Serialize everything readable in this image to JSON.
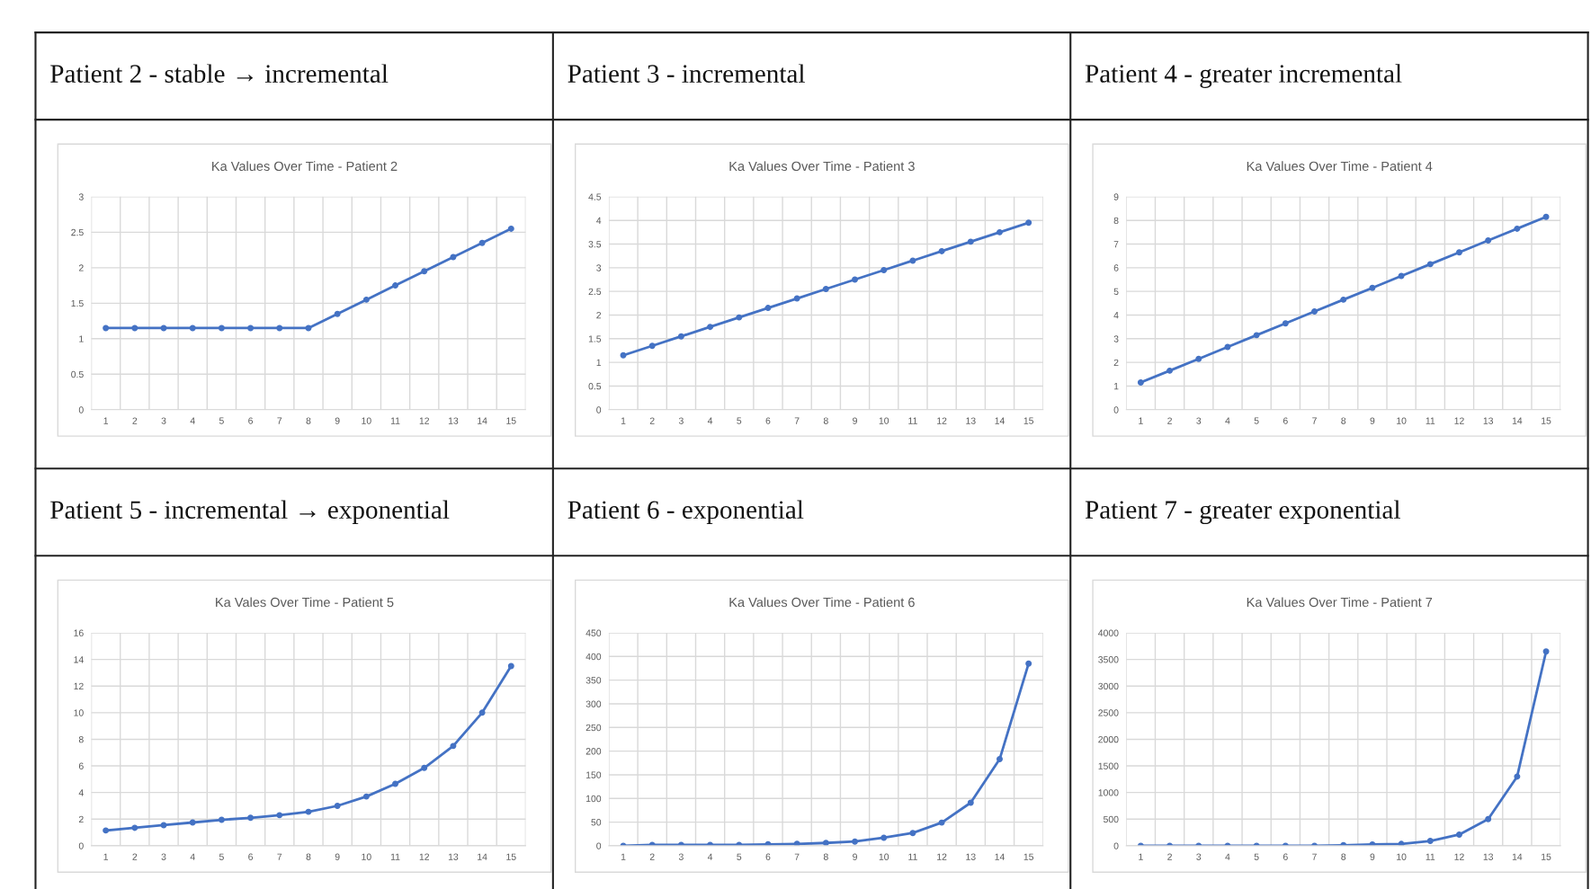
{
  "chart_data": [
    {
      "type": "line",
      "subtitle": "Patient 2 - stable → incremental",
      "title": "Ka Values Over Time - Patient 2",
      "categories": [
        "1",
        "2",
        "3",
        "4",
        "5",
        "6",
        "7",
        "8",
        "9",
        "10",
        "11",
        "12",
        "13",
        "14",
        "15"
      ],
      "ylim": [
        0,
        3
      ],
      "yticks": [
        0,
        0.5,
        1,
        1.5,
        2,
        2.5,
        3
      ],
      "grid": true,
      "marker": "circle",
      "line_style": "solid",
      "series": [
        {
          "color": "#4472c4",
          "values": [
            1.15,
            1.15,
            1.15,
            1.15,
            1.15,
            1.15,
            1.15,
            1.15,
            1.35,
            1.55,
            1.75,
            1.95,
            2.15,
            2.35,
            2.55
          ]
        }
      ]
    },
    {
      "type": "line",
      "subtitle": "Patient 3 - incremental",
      "title": "Ka Values Over Time - Patient 3",
      "categories": [
        "1",
        "2",
        "3",
        "4",
        "5",
        "6",
        "7",
        "8",
        "9",
        "10",
        "11",
        "12",
        "13",
        "14",
        "15"
      ],
      "ylim": [
        0,
        4.5
      ],
      "yticks": [
        0,
        0.5,
        1,
        1.5,
        2,
        2.5,
        3,
        3.5,
        4,
        4.5
      ],
      "grid": true,
      "marker": "circle",
      "line_style": "solid",
      "series": [
        {
          "color": "#4472c4",
          "values": [
            1.15,
            1.35,
            1.55,
            1.75,
            1.95,
            2.15,
            2.35,
            2.55,
            2.75,
            2.95,
            3.15,
            3.35,
            3.55,
            3.75,
            3.95
          ]
        }
      ]
    },
    {
      "type": "line",
      "subtitle": "Patient 4 - greater incremental",
      "title": "Ka Values Over Time - Patient 4",
      "categories": [
        "1",
        "2",
        "3",
        "4",
        "5",
        "6",
        "7",
        "8",
        "9",
        "10",
        "11",
        "12",
        "13",
        "14",
        "15"
      ],
      "ylim": [
        0,
        9
      ],
      "yticks": [
        0,
        1,
        2,
        3,
        4,
        5,
        6,
        7,
        8,
        9
      ],
      "grid": true,
      "marker": "circle",
      "line_style": "solid",
      "series": [
        {
          "color": "#4472c4",
          "values": [
            1.15,
            1.65,
            2.15,
            2.65,
            3.15,
            3.65,
            4.15,
            4.65,
            5.15,
            5.65,
            6.15,
            6.65,
            7.15,
            7.65,
            8.15
          ]
        }
      ]
    },
    {
      "type": "line",
      "subtitle": "Patient 5 - incremental → exponential",
      "title": "Ka Vales Over Time - Patient 5",
      "categories": [
        "1",
        "2",
        "3",
        "4",
        "5",
        "6",
        "7",
        "8",
        "9",
        "10",
        "11",
        "12",
        "13",
        "14",
        "15"
      ],
      "ylim": [
        0,
        16
      ],
      "yticks": [
        0,
        2,
        4,
        6,
        8,
        10,
        12,
        14,
        16
      ],
      "grid": true,
      "marker": "circle",
      "line_style": "solid",
      "series": [
        {
          "color": "#4472c4",
          "values": [
            1.15,
            1.35,
            1.55,
            1.75,
            1.95,
            2.1,
            2.3,
            2.55,
            3.0,
            3.7,
            4.65,
            5.85,
            7.5,
            10,
            13.5
          ]
        }
      ]
    },
    {
      "type": "line",
      "subtitle": "Patient 6 - exponential",
      "title": "Ka Values Over Time - Patient 6",
      "categories": [
        "1",
        "2",
        "3",
        "4",
        "5",
        "6",
        "7",
        "8",
        "9",
        "10",
        "11",
        "12",
        "13",
        "14",
        "15"
      ],
      "ylim": [
        0,
        450
      ],
      "yticks": [
        0,
        50,
        100,
        150,
        200,
        250,
        300,
        350,
        400,
        450
      ],
      "grid": true,
      "marker": "circle",
      "line_style": "solid",
      "series": [
        {
          "color": "#4472c4",
          "values": [
            0,
            2,
            2,
            2,
            2,
            3,
            4,
            6,
            9,
            17,
            27,
            49,
            91,
            183,
            385
          ]
        }
      ]
    },
    {
      "type": "line",
      "subtitle": "Patient 7 - greater exponential",
      "title": "Ka Values Over Time - Patient 7",
      "categories": [
        "1",
        "2",
        "3",
        "4",
        "5",
        "6",
        "7",
        "8",
        "9",
        "10",
        "11",
        "12",
        "13",
        "14",
        "15"
      ],
      "ylim": [
        0,
        4000
      ],
      "yticks": [
        0,
        500,
        1000,
        1500,
        2000,
        2500,
        3000,
        3500,
        4000
      ],
      "grid": true,
      "marker": "circle",
      "line_style": "solid",
      "series": [
        {
          "color": "#4472c4",
          "values": [
            0,
            0,
            0,
            0,
            0,
            0,
            0,
            10,
            25,
            35,
            90,
            210,
            500,
            1300,
            3650
          ]
        }
      ]
    }
  ]
}
